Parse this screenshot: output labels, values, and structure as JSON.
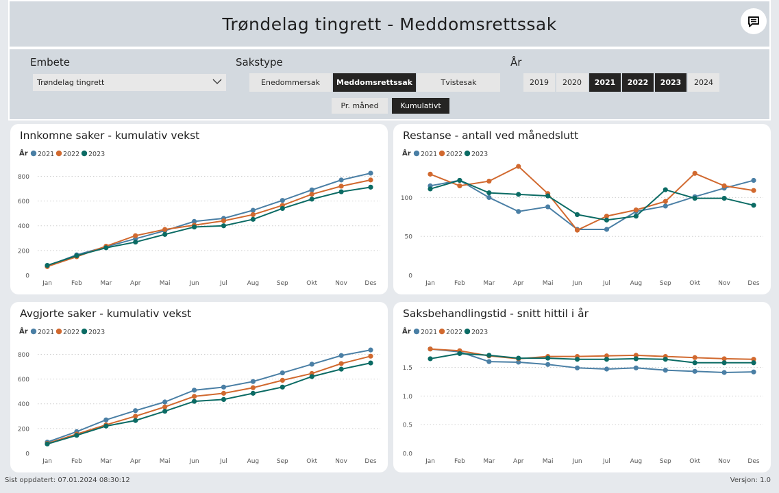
{
  "header": {
    "title": "Trøndelag tingrett - Meddomsrettssak"
  },
  "filters": {
    "embete": {
      "label": "Embete",
      "value": "Trøndelag tingrett"
    },
    "sakstype": {
      "label": "Sakstype",
      "options": [
        {
          "label": "Enedommersak",
          "selected": false
        },
        {
          "label": "Meddomsrettssak",
          "selected": true
        },
        {
          "label": "Tvistesak",
          "selected": false
        }
      ]
    },
    "aar": {
      "label": "År",
      "options": [
        {
          "label": "2019",
          "selected": false
        },
        {
          "label": "2020",
          "selected": false
        },
        {
          "label": "2021",
          "selected": true
        },
        {
          "label": "2022",
          "selected": true
        },
        {
          "label": "2023",
          "selected": true
        },
        {
          "label": "2024",
          "selected": false
        }
      ]
    },
    "mode": {
      "options": [
        {
          "label": "Pr. måned",
          "selected": false
        },
        {
          "label": "Kumulativt",
          "selected": true
        }
      ]
    }
  },
  "colors": {
    "s2021": "#4a7fa5",
    "s2022": "#d1692f",
    "s2023": "#0b6b64",
    "dark": "#252423"
  },
  "legend_label": "År",
  "chart_data": [
    {
      "type": "line",
      "title": "Innkomne saker - kumulativ vekst",
      "categories": [
        "Jan",
        "Feb",
        "Mar",
        "Apr",
        "Mai",
        "Jun",
        "Jul",
        "Aug",
        "Sep",
        "Okt",
        "Nov",
        "Des"
      ],
      "yticks": [
        "0",
        "200",
        "400",
        "600",
        "800"
      ],
      "ylim": [
        0,
        880
      ],
      "series": [
        {
          "name": "2021",
          "values": [
            75,
            165,
            230,
            295,
            360,
            435,
            460,
            525,
            605,
            690,
            770,
            825
          ]
        },
        {
          "name": "2022",
          "values": [
            70,
            150,
            235,
            320,
            370,
            405,
            440,
            490,
            565,
            655,
            720,
            770
          ]
        },
        {
          "name": "2023",
          "values": [
            80,
            158,
            222,
            268,
            330,
            390,
            400,
            452,
            540,
            615,
            675,
            712
          ]
        }
      ]
    },
    {
      "type": "line",
      "title": "Restanse - antall ved månedslutt",
      "categories": [
        "Jan",
        "Feb",
        "Mar",
        "Apr",
        "Mai",
        "Jun",
        "Jul",
        "Aug",
        "Sep",
        "Okt",
        "Nov",
        "Des"
      ],
      "yticks": [
        "0",
        "50",
        "100"
      ],
      "ylim": [
        0,
        140
      ],
      "series": [
        {
          "name": "2021",
          "values": [
            115,
            122,
            100,
            82,
            88,
            59,
            59,
            82,
            89,
            101,
            112,
            122
          ]
        },
        {
          "name": "2022",
          "values": [
            130,
            115,
            121,
            140,
            105,
            58,
            76,
            84,
            95,
            131,
            115,
            109
          ]
        },
        {
          "name": "2023",
          "values": [
            111,
            122,
            106,
            104,
            102,
            78,
            71,
            76,
            110,
            99,
            99,
            90
          ]
        }
      ]
    },
    {
      "type": "line",
      "title": "Avgjorte saker - kumulativ vekst",
      "categories": [
        "Jan",
        "Feb",
        "Mar",
        "Apr",
        "Mai",
        "Jun",
        "Jul",
        "Aug",
        "Sep",
        "Okt",
        "Nov",
        "Des"
      ],
      "yticks": [
        "0",
        "200",
        "400",
        "600",
        "800"
      ],
      "ylim": [
        0,
        880
      ],
      "series": [
        {
          "name": "2021",
          "values": [
            90,
            175,
            270,
            345,
            415,
            510,
            535,
            580,
            650,
            720,
            790,
            835
          ]
        },
        {
          "name": "2022",
          "values": [
            80,
            155,
            230,
            300,
            375,
            460,
            485,
            530,
            590,
            645,
            725,
            785
          ]
        },
        {
          "name": "2023",
          "values": [
            75,
            145,
            220,
            265,
            340,
            420,
            435,
            485,
            535,
            620,
            680,
            730
          ]
        }
      ]
    },
    {
      "type": "line",
      "title": "Saksbehandlingstid - snitt hittil i år",
      "categories": [
        "Jan",
        "Feb",
        "Mar",
        "Apr",
        "Mai",
        "Jun",
        "Jul",
        "Aug",
        "Sep",
        "Okt",
        "Nov",
        "Des"
      ],
      "yticks": [
        "0.0",
        "0.5",
        "1.0",
        "1.5"
      ],
      "ylim": [
        0,
        1.9
      ],
      "series": [
        {
          "name": "2021",
          "values": [
            1.82,
            1.77,
            1.6,
            1.59,
            1.55,
            1.49,
            1.47,
            1.49,
            1.45,
            1.43,
            1.41,
            1.42
          ]
        },
        {
          "name": "2022",
          "values": [
            1.82,
            1.79,
            1.7,
            1.65,
            1.69,
            1.69,
            1.7,
            1.71,
            1.69,
            1.67,
            1.65,
            1.64
          ]
        },
        {
          "name": "2023",
          "values": [
            1.65,
            1.74,
            1.71,
            1.66,
            1.66,
            1.64,
            1.64,
            1.65,
            1.64,
            1.58,
            1.58,
            1.58
          ]
        }
      ]
    }
  ],
  "footer": {
    "updated": "Sist oppdatert: 07.01.2024 08:30:12",
    "version": "Versjon: 1.0"
  }
}
